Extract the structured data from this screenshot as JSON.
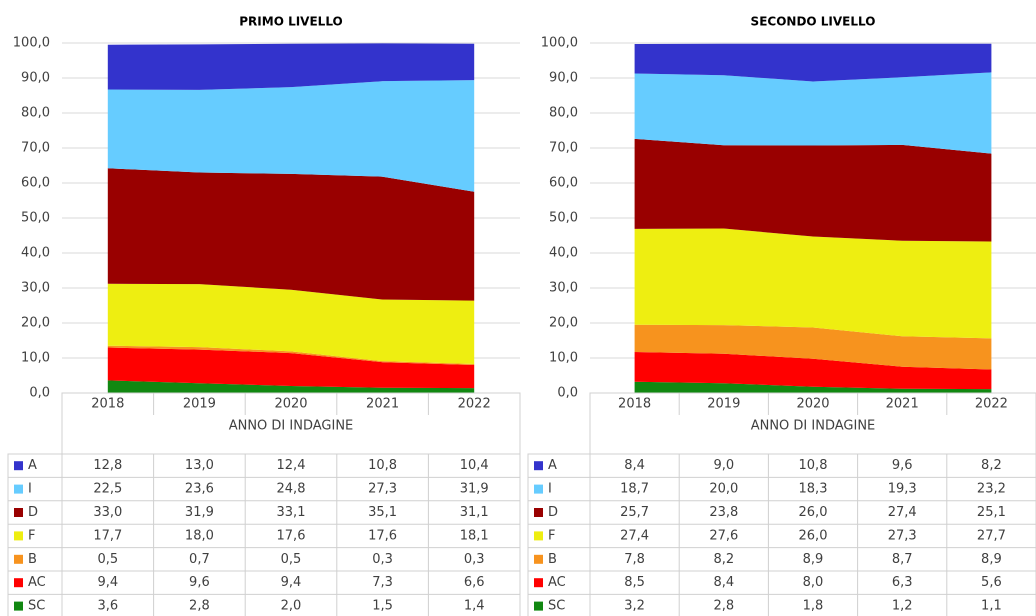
{
  "chart_data": [
    {
      "type": "area",
      "stacked": true,
      "title": "PRIMO LIVELLO",
      "x_label": "ANNO DI INDAGINE",
      "categories": [
        "2018",
        "2019",
        "2020",
        "2021",
        "2022"
      ],
      "ylim": [
        0,
        100
      ],
      "yticks": [
        {
          "value": 0,
          "label": "0,0"
        },
        {
          "value": 10,
          "label": "10,0"
        },
        {
          "value": 20,
          "label": "20,0"
        },
        {
          "value": 30,
          "label": "30,0"
        },
        {
          "value": 40,
          "label": "40,0"
        },
        {
          "value": 50,
          "label": "50,0"
        },
        {
          "value": 60,
          "label": "60,0"
        },
        {
          "value": 70,
          "label": "70,0"
        },
        {
          "value": 80,
          "label": "80,0"
        },
        {
          "value": 90,
          "label": "90,0"
        },
        {
          "value": 100,
          "label": "100,0"
        }
      ],
      "grid": true,
      "series": [
        {
          "name": "A",
          "color": "#3333cc",
          "values": [
            12.8,
            13.0,
            12.4,
            10.8,
            10.4
          ],
          "value_labels": [
            "12,8",
            "13,0",
            "12,4",
            "10,8",
            "10,4"
          ]
        },
        {
          "name": "I",
          "color": "#66ccff",
          "values": [
            22.5,
            23.6,
            24.8,
            27.3,
            31.9
          ],
          "value_labels": [
            "22,5",
            "23,6",
            "24,8",
            "27,3",
            "31,9"
          ]
        },
        {
          "name": "D",
          "color": "#990000",
          "values": [
            33.0,
            31.9,
            33.1,
            35.1,
            31.1
          ],
          "value_labels": [
            "33,0",
            "31,9",
            "33,1",
            "35,1",
            "31,1"
          ]
        },
        {
          "name": "F",
          "color": "#eeee11",
          "values": [
            17.7,
            18.0,
            17.6,
            17.6,
            18.1
          ],
          "value_labels": [
            "17,7",
            "18,0",
            "17,6",
            "17,6",
            "18,1"
          ]
        },
        {
          "name": "B",
          "color": "#f7931e",
          "values": [
            0.5,
            0.7,
            0.5,
            0.3,
            0.3
          ],
          "value_labels": [
            "0,5",
            "0,7",
            "0,5",
            "0,3",
            "0,3"
          ]
        },
        {
          "name": "AC",
          "color": "#ff0000",
          "values": [
            9.4,
            9.6,
            9.4,
            7.3,
            6.6
          ],
          "value_labels": [
            "9,4",
            "9,6",
            "9,4",
            "7,3",
            "6,6"
          ]
        },
        {
          "name": "SC",
          "color": "#118811",
          "values": [
            3.6,
            2.8,
            2.0,
            1.5,
            1.4
          ],
          "value_labels": [
            "3,6",
            "2,8",
            "2,0",
            "1,5",
            "1,4"
          ]
        }
      ]
    },
    {
      "type": "area",
      "stacked": true,
      "title": "SECONDO LIVELLO",
      "x_label": "ANNO DI INDAGINE",
      "categories": [
        "2018",
        "2019",
        "2020",
        "2021",
        "2022"
      ],
      "ylim": [
        0,
        100
      ],
      "yticks": [
        {
          "value": 0,
          "label": "0,0"
        },
        {
          "value": 10,
          "label": "10,0"
        },
        {
          "value": 20,
          "label": "20,0"
        },
        {
          "value": 30,
          "label": "30,0"
        },
        {
          "value": 40,
          "label": "40,0"
        },
        {
          "value": 50,
          "label": "50,0"
        },
        {
          "value": 60,
          "label": "60,0"
        },
        {
          "value": 70,
          "label": "70,0"
        },
        {
          "value": 80,
          "label": "80,0"
        },
        {
          "value": 90,
          "label": "90,0"
        },
        {
          "value": 100,
          "label": "100,0"
        }
      ],
      "grid": true,
      "series": [
        {
          "name": "A",
          "color": "#3333cc",
          "values": [
            8.4,
            9.0,
            10.8,
            9.6,
            8.2
          ],
          "value_labels": [
            "8,4",
            "9,0",
            "10,8",
            "9,6",
            "8,2"
          ]
        },
        {
          "name": "I",
          "color": "#66ccff",
          "values": [
            18.7,
            20.0,
            18.3,
            19.3,
            23.2
          ],
          "value_labels": [
            "18,7",
            "20,0",
            "18,3",
            "19,3",
            "23,2"
          ]
        },
        {
          "name": "D",
          "color": "#990000",
          "values": [
            25.7,
            23.8,
            26.0,
            27.4,
            25.1
          ],
          "value_labels": [
            "25,7",
            "23,8",
            "26,0",
            "27,4",
            "25,1"
          ]
        },
        {
          "name": "F",
          "color": "#eeee11",
          "values": [
            27.4,
            27.6,
            26.0,
            27.3,
            27.7
          ],
          "value_labels": [
            "27,4",
            "27,6",
            "26,0",
            "27,3",
            "27,7"
          ]
        },
        {
          "name": "B",
          "color": "#f7931e",
          "values": [
            7.8,
            8.2,
            8.9,
            8.7,
            8.9
          ],
          "value_labels": [
            "7,8",
            "8,2",
            "8,9",
            "8,7",
            "8,9"
          ]
        },
        {
          "name": "AC",
          "color": "#ff0000",
          "values": [
            8.5,
            8.4,
            8.0,
            6.3,
            5.6
          ],
          "value_labels": [
            "8,5",
            "8,4",
            "8,0",
            "6,3",
            "5,6"
          ]
        },
        {
          "name": "SC",
          "color": "#118811",
          "values": [
            3.2,
            2.8,
            1.8,
            1.2,
            1.1
          ],
          "value_labels": [
            "3,2",
            "2,8",
            "1,8",
            "1,2",
            "1,1"
          ]
        }
      ]
    }
  ]
}
